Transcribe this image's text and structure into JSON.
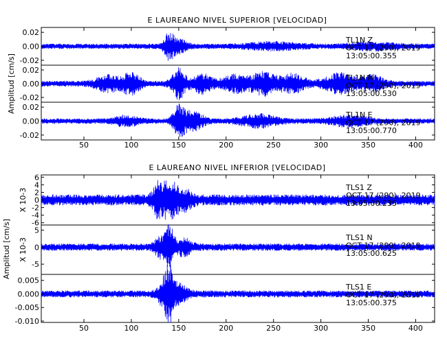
{
  "figure_colors": {
    "trace": "#0000ff",
    "axes": "#000000",
    "background": "#ffffff"
  },
  "chart_data": [
    {
      "type": "line",
      "title": "E LAUREANO NIVEL SUPERIOR [VELOCIDAD]",
      "ylabel": "Amplitud [cm/s]",
      "xlabel": "",
      "xlim": [
        5,
        420
      ],
      "xticks": [
        50,
        100,
        150,
        200,
        250,
        300,
        350,
        400
      ],
      "grid": false,
      "series": [
        {
          "name": "TL1N Z",
          "ylim": [
            -0.027,
            0.027
          ],
          "yticks": [
            -0.02,
            0.0,
            0.02
          ],
          "ytick_labels": [
            "-0.02",
            "0.00",
            "0.02"
          ],
          "info": [
            "TL1N   Z",
            "OCT 17 (290), 2019",
            "13:05:00.355"
          ],
          "noise_amp": 0.0035,
          "events": [
            {
              "t": 140,
              "amp": 0.018,
              "width": 6
            },
            {
              "t": 152,
              "amp": 0.008,
              "width": 8
            },
            {
              "t": 250,
              "amp": 0.004,
              "width": 30
            },
            {
              "t": 355,
              "amp": 0.004,
              "width": 25
            }
          ]
        },
        {
          "name": "TL1N N",
          "ylim": [
            -0.027,
            0.027
          ],
          "yticks": [
            -0.02,
            0.0,
            0.02
          ],
          "ytick_labels": [
            "-0.02",
            "0.00",
            "0.02"
          ],
          "info": [
            "TL1N   N",
            "OCT 17 (290), 2019",
            "13:05:00.530"
          ],
          "noise_amp": 0.004,
          "events": [
            {
              "t": 75,
              "amp": 0.01,
              "width": 14
            },
            {
              "t": 100,
              "amp": 0.014,
              "width": 10
            },
            {
              "t": 150,
              "amp": 0.02,
              "width": 8
            },
            {
              "t": 175,
              "amp": 0.012,
              "width": 12
            },
            {
              "t": 210,
              "amp": 0.011,
              "width": 15
            },
            {
              "t": 240,
              "amp": 0.015,
              "width": 14
            },
            {
              "t": 270,
              "amp": 0.012,
              "width": 14
            },
            {
              "t": 320,
              "amp": 0.013,
              "width": 18
            },
            {
              "t": 355,
              "amp": 0.01,
              "width": 12
            }
          ]
        },
        {
          "name": "TL1N E",
          "ylim": [
            -0.027,
            0.027
          ],
          "yticks": [
            -0.02,
            0.0,
            0.02
          ],
          "ytick_labels": [
            "-0.02",
            "0.00",
            "0.02"
          ],
          "info": [
            "TL1N   E",
            "OCT 17 (290), 2019",
            "13:05:00.770"
          ],
          "noise_amp": 0.0035,
          "events": [
            {
              "t": 95,
              "amp": 0.006,
              "width": 14
            },
            {
              "t": 150,
              "amp": 0.02,
              "width": 7
            },
            {
              "t": 165,
              "amp": 0.012,
              "width": 12
            },
            {
              "t": 235,
              "amp": 0.008,
              "width": 20
            },
            {
              "t": 330,
              "amp": 0.006,
              "width": 22
            }
          ]
        }
      ]
    },
    {
      "type": "line",
      "title": "E LAUREANO NIVEL INFERIOR [VELOCIDAD]",
      "ylabel": "Amplitud [cm/s]",
      "xlabel": "",
      "xlim": [
        5,
        420
      ],
      "xticks": [
        50,
        100,
        150,
        200,
        250,
        300,
        350,
        400
      ],
      "grid": false,
      "series": [
        {
          "name": "TLS1 Z",
          "ylim": [
            -6.6,
            6.6
          ],
          "yticks": [
            -6,
            -4,
            -2,
            0,
            2,
            4,
            6
          ],
          "ytick_labels": [
            "-6",
            "-4",
            "-2",
            "0",
            "2",
            "4",
            "6"
          ],
          "scale_label": "X 10-3",
          "info": [
            "TLS1   Z",
            "OCT 17 (290), 2019",
            "13:05:00.235"
          ],
          "noise_amp": 1.4,
          "events": [
            {
              "t": 128,
              "amp": 3.5,
              "width": 6
            },
            {
              "t": 140,
              "amp": 4.2,
              "width": 8
            },
            {
              "t": 155,
              "amp": 2.0,
              "width": 10
            }
          ]
        },
        {
          "name": "TLS1 N",
          "ylim": [
            -8,
            6.5
          ],
          "yticks": [
            -5,
            0,
            5
          ],
          "ytick_labels": [
            "-5",
            "0",
            "5"
          ],
          "scale_label": "X 10-3",
          "info": [
            "TLS1   N",
            "OCT 17 (290), 2019",
            "13:05:00.625"
          ],
          "noise_amp": 1.0,
          "events": [
            {
              "t": 130,
              "amp": 2.5,
              "width": 6
            },
            {
              "t": 140,
              "amp": 6.0,
              "width": 5
            },
            {
              "t": 155,
              "amp": 2.0,
              "width": 10
            }
          ]
        },
        {
          "name": "TLS1 E",
          "ylim": [
            -0.0105,
            0.0072
          ],
          "yticks": [
            -0.01,
            -0.005,
            0.0,
            0.005
          ],
          "ytick_labels": [
            "-0.010",
            "-0.005",
            "0.000",
            "0.005"
          ],
          "info": [
            "TLS1   E",
            "OCT 17 (290), 2019",
            "13:05:00.375"
          ],
          "noise_amp": 0.0012,
          "events": [
            {
              "t": 133,
              "amp": 0.004,
              "width": 6
            },
            {
              "t": 140,
              "amp": 0.0085,
              "width": 5
            },
            {
              "t": 150,
              "amp": 0.003,
              "width": 10
            }
          ]
        }
      ]
    }
  ]
}
